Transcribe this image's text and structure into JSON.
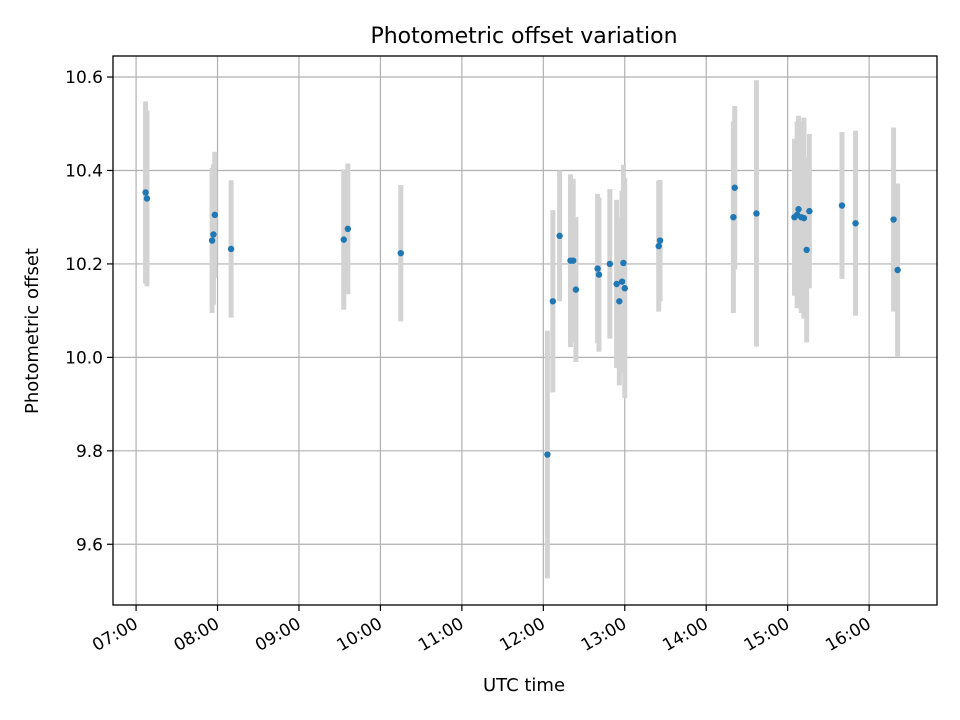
{
  "chart_data": {
    "type": "scatter",
    "title": "Photometric offset variation",
    "xlabel": "UTC time",
    "ylabel": "Photometric offset",
    "x_unit": "UTC hour of day",
    "xlim": [
      "06:43",
      "16:50"
    ],
    "ylim": [
      9.47,
      10.645
    ],
    "x_ticks": [
      "07:00",
      "08:00",
      "09:00",
      "10:00",
      "11:00",
      "12:00",
      "13:00",
      "14:00",
      "15:00",
      "16:00"
    ],
    "y_ticks": [
      9.6,
      9.8,
      10.0,
      10.2,
      10.4,
      10.6
    ],
    "y_tick_labels": [
      "9.6",
      "9.8",
      "10.0",
      "10.2",
      "10.4",
      "10.6"
    ],
    "grid": true,
    "x_tick_rotation_deg": 30,
    "colors": {
      "points": "#1f77b4",
      "error_bars": "#d3d3d3",
      "grid": "#b0b0b0"
    },
    "series": [
      {
        "points": [
          {
            "x": "07:07",
            "y": 10.353,
            "yerr": 0.195
          },
          {
            "x": "07:08",
            "y": 10.34,
            "yerr": 0.188
          },
          {
            "x": "07:56",
            "y": 10.25,
            "yerr": 0.155
          },
          {
            "x": "07:57",
            "y": 10.263,
            "yerr": 0.15
          },
          {
            "x": "07:58",
            "y": 10.305,
            "yerr": 0.135
          },
          {
            "x": "08:10",
            "y": 10.232,
            "yerr": 0.147
          },
          {
            "x": "09:33",
            "y": 10.252,
            "yerr": 0.15
          },
          {
            "x": "09:36",
            "y": 10.275,
            "yerr": 0.14
          },
          {
            "x": "10:15",
            "y": 10.223,
            "yerr": 0.146
          },
          {
            "x": "12:03",
            "y": 9.792,
            "yerr": 0.265
          },
          {
            "x": "12:07",
            "y": 10.12,
            "yerr": 0.195
          },
          {
            "x": "12:12",
            "y": 10.26,
            "yerr": 0.14
          },
          {
            "x": "12:20",
            "y": 10.207,
            "yerr": 0.185
          },
          {
            "x": "12:22",
            "y": 10.207,
            "yerr": 0.175
          },
          {
            "x": "12:24",
            "y": 10.145,
            "yerr": 0.155
          },
          {
            "x": "12:40",
            "y": 10.19,
            "yerr": 0.16
          },
          {
            "x": "12:41",
            "y": 10.177,
            "yerr": 0.165
          },
          {
            "x": "12:49",
            "y": 10.2,
            "yerr": 0.16
          },
          {
            "x": "12:54",
            "y": 10.157,
            "yerr": 0.18
          },
          {
            "x": "12:56",
            "y": 10.12,
            "yerr": 0.18
          },
          {
            "x": "12:58",
            "y": 10.162,
            "yerr": 0.195
          },
          {
            "x": "12:59",
            "y": 10.202,
            "yerr": 0.21
          },
          {
            "x": "13:00",
            "y": 10.148,
            "yerr": 0.235
          },
          {
            "x": "13:25",
            "y": 10.238,
            "yerr": 0.14
          },
          {
            "x": "13:26",
            "y": 10.25,
            "yerr": 0.13
          },
          {
            "x": "14:20",
            "y": 10.3,
            "yerr": 0.205
          },
          {
            "x": "14:21",
            "y": 10.363,
            "yerr": 0.175
          },
          {
            "x": "14:37",
            "y": 10.308,
            "yerr": 0.285
          },
          {
            "x": "15:05",
            "y": 10.3,
            "yerr": 0.168
          },
          {
            "x": "15:07",
            "y": 10.305,
            "yerr": 0.2
          },
          {
            "x": "15:08",
            "y": 10.317,
            "yerr": 0.2
          },
          {
            "x": "15:10",
            "y": 10.3,
            "yerr": 0.205
          },
          {
            "x": "15:12",
            "y": 10.298,
            "yerr": 0.215
          },
          {
            "x": "15:14",
            "y": 10.23,
            "yerr": 0.198
          },
          {
            "x": "15:16",
            "y": 10.313,
            "yerr": 0.165
          },
          {
            "x": "15:40",
            "y": 10.325,
            "yerr": 0.157
          },
          {
            "x": "15:50",
            "y": 10.287,
            "yerr": 0.198
          },
          {
            "x": "16:18",
            "y": 10.295,
            "yerr": 0.197
          },
          {
            "x": "16:21",
            "y": 10.187,
            "yerr": 0.185
          }
        ]
      }
    ]
  }
}
